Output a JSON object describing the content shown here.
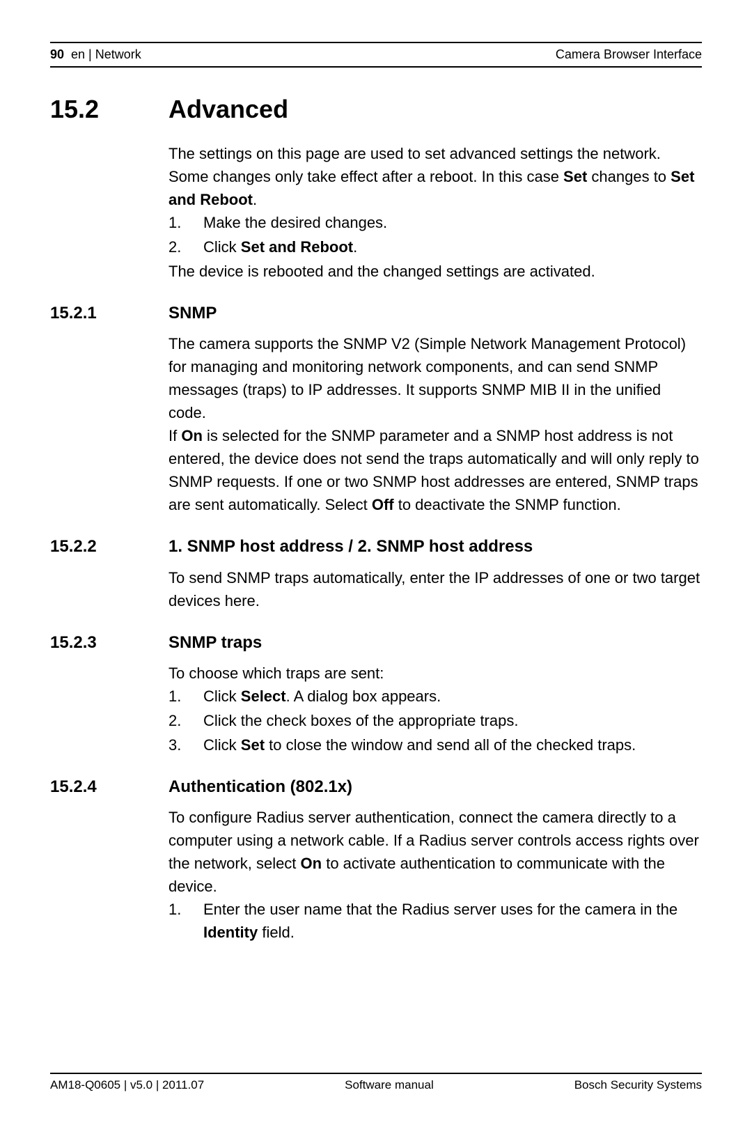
{
  "header": {
    "page_number": "90",
    "breadcrumb": "en | Network",
    "right": "Camera Browser Interface"
  },
  "section_15_2": {
    "number": "15.2",
    "title": "Advanced",
    "intro_html": "The settings on this page are used to set advanced settings the network. Some changes only take effect after a reboot. In this case <b>Set</b> changes to <b>Set and Reboot</b>.",
    "steps": [
      "Make the desired changes.",
      "Click <b>Set and Reboot</b>."
    ],
    "outro": "The device is rebooted and the changed settings are activated."
  },
  "section_15_2_1": {
    "number": "15.2.1",
    "title": "SNMP",
    "p1": "The camera supports the SNMP V2 (Simple Network Management Protocol) for managing and monitoring network components, and can send SNMP messages (traps) to IP addresses. It supports SNMP MIB II in the unified code.",
    "p2_html": "If <b>On</b> is selected for the SNMP parameter and a SNMP host address is not entered, the device does not send the traps automatically and will only reply to SNMP requests. If one or two SNMP host addresses are entered, SNMP traps are sent automatically. Select <b>Off</b> to deactivate the SNMP function."
  },
  "section_15_2_2": {
    "number": "15.2.2",
    "title": "1. SNMP host address / 2. SNMP host address",
    "body": "To send SNMP traps automatically, enter the IP addresses of one or two target devices here."
  },
  "section_15_2_3": {
    "number": "15.2.3",
    "title": "SNMP traps",
    "intro": "To choose which traps are sent:",
    "steps": [
      "Click <b>Select</b>. A dialog box appears.",
      "Click the check boxes of the appropriate traps.",
      "Click <b>Set</b> to close the window and send all of the checked traps."
    ]
  },
  "section_15_2_4": {
    "number": "15.2.4",
    "title": "Authentication (802.1x)",
    "intro_html": "To configure Radius server authentication, connect the camera directly to a computer using a network cable. If a Radius server controls access rights over the network, select <b>On</b> to activate authentication to communicate with the device.",
    "steps": [
      "Enter the user name that the Radius server uses for the camera in the <b>Identity</b> field."
    ]
  },
  "footer": {
    "left": "AM18-Q0605 | v5.0 | 2011.07",
    "center": "Software manual",
    "right": "Bosch Security Systems"
  }
}
